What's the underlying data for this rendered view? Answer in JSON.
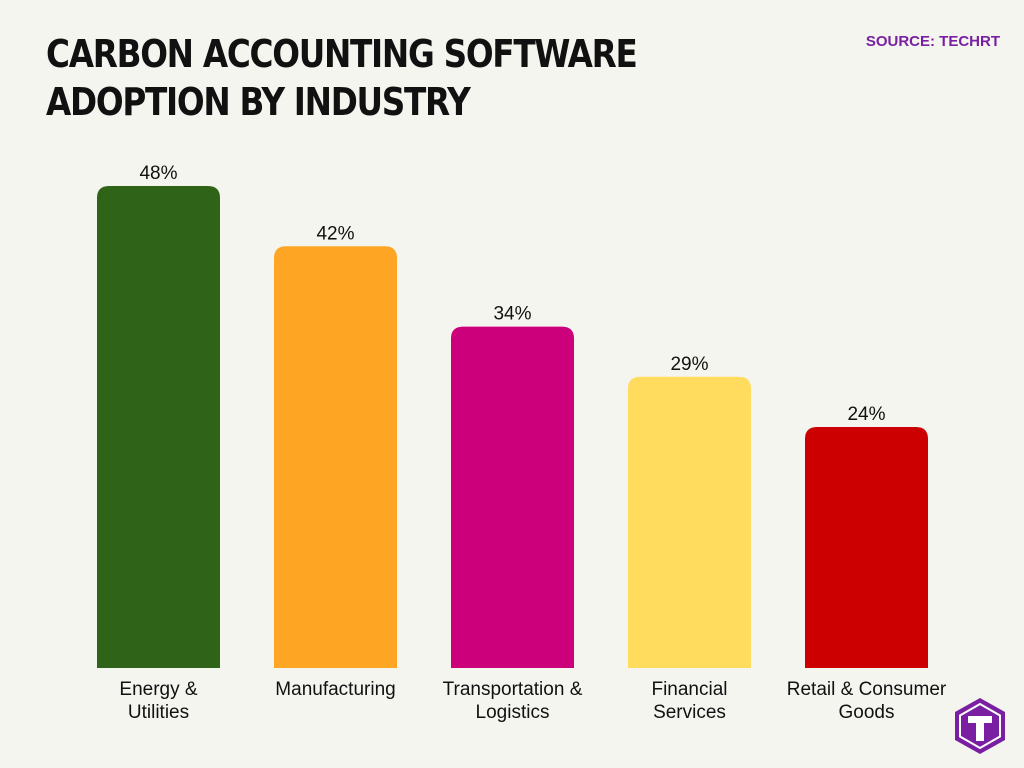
{
  "source_label": "SOURCE: TECHRT",
  "colors": {
    "background": "#f5f5f0",
    "title": "#111111",
    "source": "#7a1fa2",
    "logo": "#7a1fa2"
  },
  "logo": {
    "icon": "techrt-t-logo-icon"
  },
  "chart_data": {
    "type": "bar",
    "title": "CARBON ACCOUNTING SOFTWARE ADOPTION BY INDUSTRY",
    "categories": [
      [
        "Energy &",
        "Utilities"
      ],
      [
        "Manufacturing"
      ],
      [
        "Transportation &",
        "Logistics"
      ],
      [
        "Financial",
        "Services"
      ],
      [
        "Retail & Consumer",
        "Goods"
      ]
    ],
    "values": [
      48,
      42,
      34,
      29,
      24
    ],
    "value_labels": [
      "48%",
      "42%",
      "34%",
      "29%",
      "24%"
    ],
    "bar_colors": [
      "#2e6318",
      "#ffa524",
      "#cc007a",
      "#ffdc5e",
      "#cc0000"
    ],
    "ylim": [
      0,
      48
    ],
    "grid": false,
    "legend": "none"
  }
}
